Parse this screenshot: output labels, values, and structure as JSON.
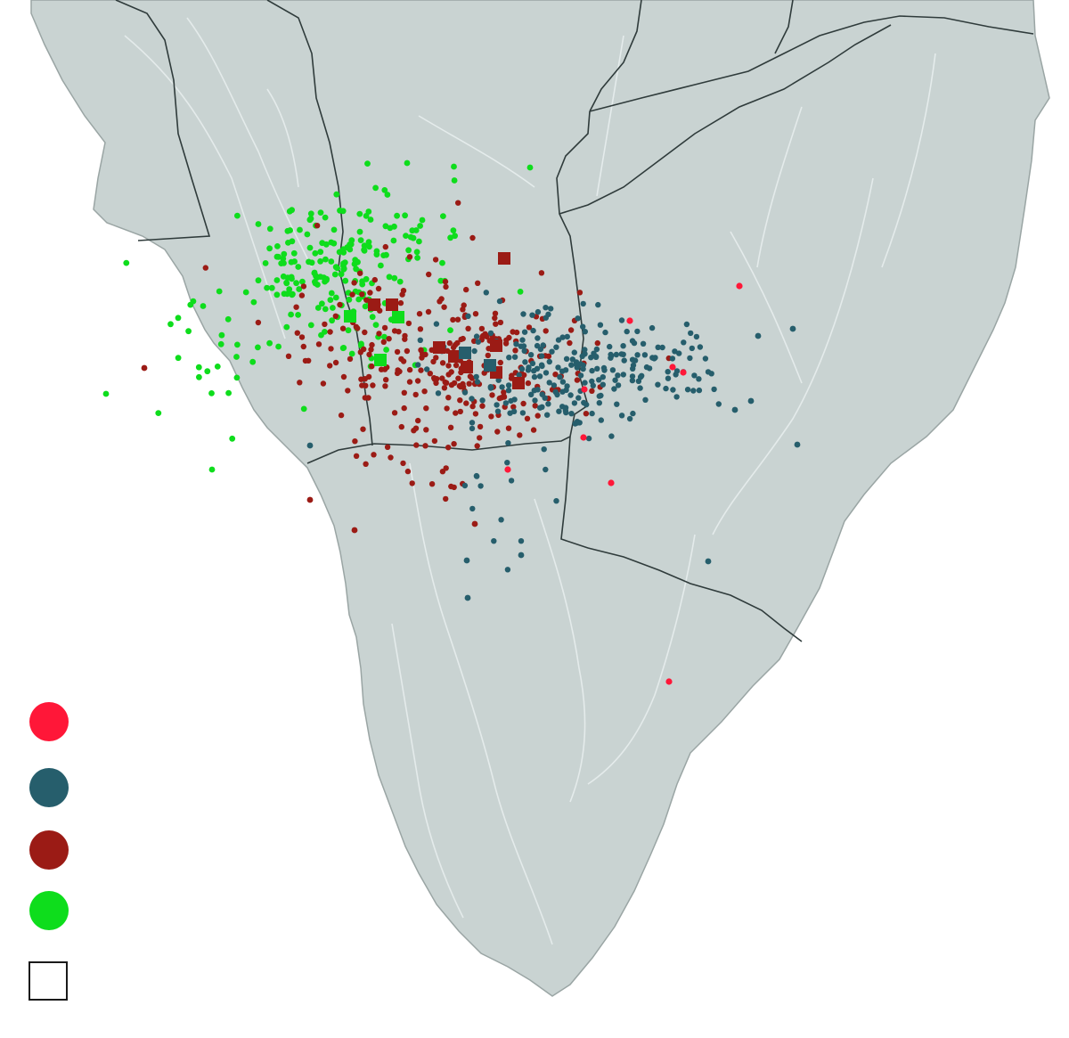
{
  "colors": {
    "background": "#ffffff",
    "land": "#c9d3d2",
    "land_edge": "#9aa5a4",
    "border": "#2f3b3b",
    "roads": "#e8eeee",
    "cat_red": "#ff1738",
    "cat_teal": "#265e6c",
    "cat_darkred": "#9b1b15",
    "cat_green": "#0edd1c",
    "square_outline": "#1a1a1a"
  },
  "legend": {
    "items": [
      {
        "color": "#ff1738",
        "shape": "circle",
        "label": ""
      },
      {
        "color": "#265e6c",
        "shape": "circle",
        "label": ""
      },
      {
        "color": "#9b1b15",
        "shape": "circle",
        "label": ""
      },
      {
        "color": "#0edd1c",
        "shape": "circle",
        "label": ""
      },
      {
        "color": "#ffffff",
        "shape": "square",
        "label": ""
      }
    ]
  }
}
